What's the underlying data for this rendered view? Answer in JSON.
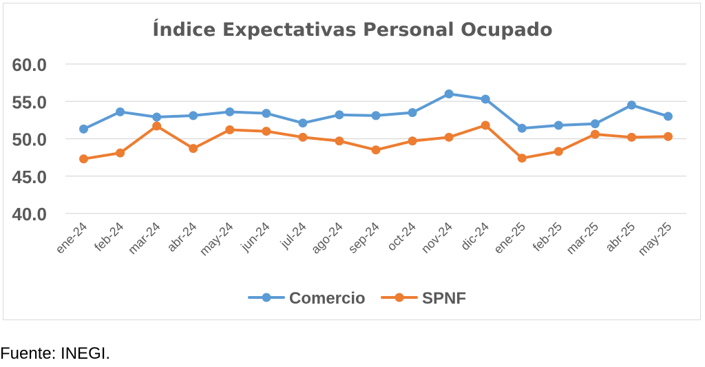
{
  "source_note": "Fuente: INEGI.",
  "chart_data": {
    "type": "line",
    "title": "Índice Expectativas Personal Ocupado",
    "xlabel": "",
    "ylabel": "",
    "ylim": [
      40.0,
      60.0
    ],
    "yticks": [
      "40.0",
      "45.0",
      "50.0",
      "55.0",
      "60.0"
    ],
    "grid": true,
    "legend_position": "bottom",
    "categories": [
      "ene-24",
      "feb-24",
      "mar-24",
      "abr-24",
      "may-24",
      "jun-24",
      "jul-24",
      "ago-24",
      "sep-24",
      "oct-24",
      "nov-24",
      "dic-24",
      "ene-25",
      "feb-25",
      "mar-25",
      "abr-25",
      "may-25"
    ],
    "series": [
      {
        "name": "Comercio",
        "color": "#5b9bd5",
        "values": [
          51.3,
          53.6,
          52.9,
          53.1,
          53.6,
          53.4,
          52.1,
          53.2,
          53.1,
          53.5,
          56.0,
          55.3,
          51.4,
          51.8,
          52.0,
          54.5,
          53.0
        ]
      },
      {
        "name": "SPNF",
        "color": "#ed7d31",
        "values": [
          47.3,
          48.1,
          51.7,
          48.7,
          51.2,
          51.0,
          50.2,
          49.7,
          48.5,
          49.7,
          50.2,
          51.8,
          47.4,
          48.3,
          50.6,
          50.2,
          50.3
        ]
      }
    ]
  }
}
